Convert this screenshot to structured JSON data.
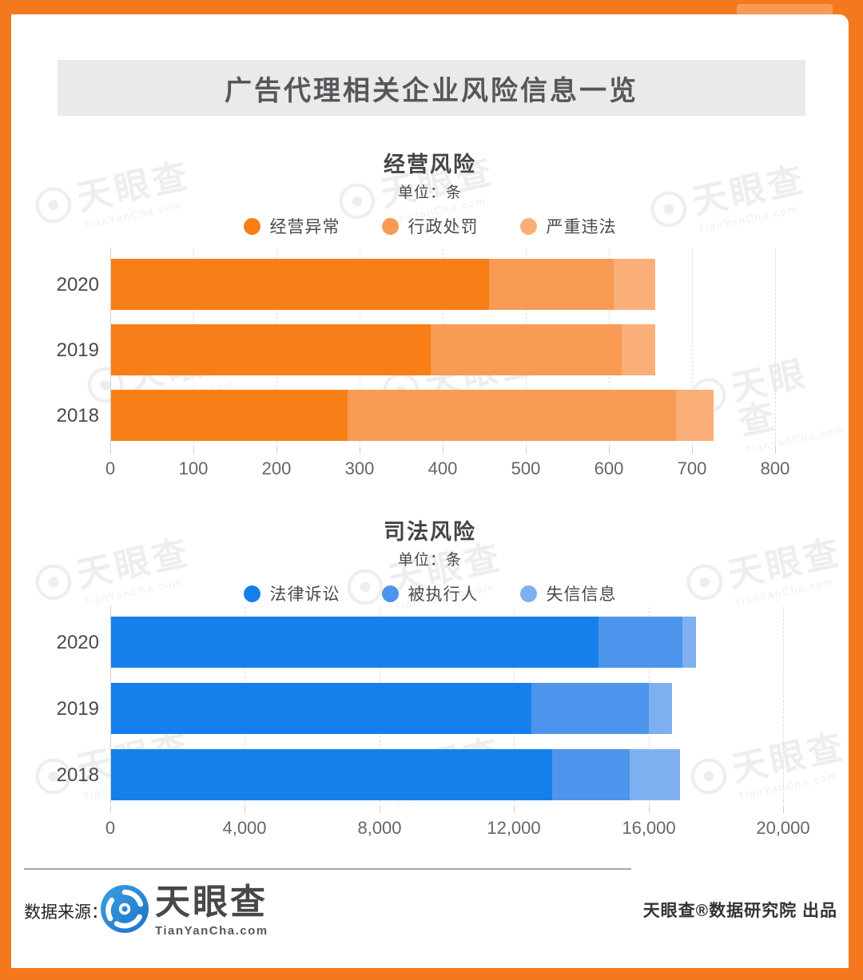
{
  "header": {
    "title": "广告代理相关企业风险信息一览"
  },
  "watermark": {
    "text": "天眼查",
    "sub": "TianYanCha.com"
  },
  "chart_data": [
    {
      "type": "bar",
      "orientation": "horizontal-stacked",
      "title": "经营风险",
      "unit_label": "单位：条",
      "categories": [
        "2020",
        "2019",
        "2018"
      ],
      "series": [
        {
          "name": "经营异常",
          "color": "#F87E17",
          "values": [
            455,
            385,
            285
          ]
        },
        {
          "name": "行政处罚",
          "color": "#F99B54",
          "values": [
            150,
            230,
            395
          ]
        },
        {
          "name": "严重违法",
          "color": "#FAAF78",
          "values": [
            50,
            40,
            45
          ]
        }
      ],
      "totals": [
        655,
        655,
        725
      ],
      "xlim": [
        0,
        800
      ],
      "ticks": [
        0,
        100,
        200,
        300,
        400,
        500,
        600,
        700,
        800
      ],
      "tick_labels": [
        "0",
        "100",
        "200",
        "300",
        "400",
        "500",
        "600",
        "700",
        "800"
      ],
      "grid": "dashed-vertical",
      "legend_position": "top-center"
    },
    {
      "type": "bar",
      "orientation": "horizontal-stacked",
      "title": "司法风险",
      "unit_label": "单位：条",
      "categories": [
        "2020",
        "2019",
        "2018"
      ],
      "series": [
        {
          "name": "法律诉讼",
          "color": "#1580EC",
          "values": [
            14500,
            12500,
            13100
          ]
        },
        {
          "name": "被执行人",
          "color": "#4D95EC",
          "values": [
            2500,
            3500,
            2300
          ]
        },
        {
          "name": "失信信息",
          "color": "#7EB0F1",
          "values": [
            400,
            700,
            1500
          ]
        }
      ],
      "totals": [
        17400,
        16700,
        16900
      ],
      "xlim": [
        0,
        20000
      ],
      "ticks": [
        0,
        4000,
        8000,
        12000,
        16000,
        20000
      ],
      "tick_labels": [
        "0",
        "4,000",
        "8,000",
        "12,000",
        "16,000",
        "20,000"
      ],
      "grid": "dashed-vertical",
      "legend_position": "top-center"
    }
  ],
  "footer": {
    "source_label": "数据来源：",
    "logo_text": "天眼查",
    "logo_sub": "TianYanCha.com",
    "credit": "天眼查®数据研究院 出品"
  },
  "colors": {
    "frame_orange": "#F4791E",
    "title_bar_bg": "#EAEAEA",
    "logo_blue": "#2A8CD4"
  }
}
